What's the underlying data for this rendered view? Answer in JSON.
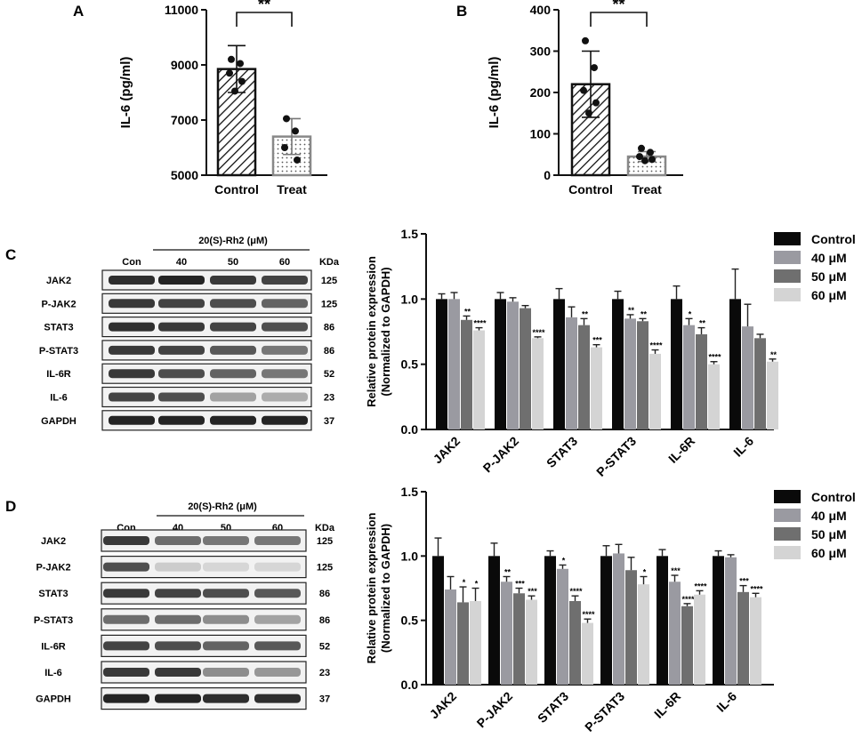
{
  "panels": {
    "A": "A",
    "B": "B",
    "C": "C",
    "D": "D"
  },
  "sig": {
    "double": "**"
  },
  "chart_data": [
    {
      "id": "A",
      "type": "bar",
      "categories": [
        "Control",
        "Treat"
      ],
      "ylabel": "IL-6 (pg/ml)",
      "ylim": [
        5000,
        11000
      ],
      "yticks": [
        5000,
        7000,
        9000,
        11000
      ],
      "values": [
        8850,
        6400
      ],
      "errors": [
        850,
        650
      ],
      "points": [
        [
          9200,
          9050,
          8700,
          8400,
          8050
        ],
        [
          7050,
          6600,
          6000,
          5550
        ]
      ],
      "patterns": [
        "hatch",
        "dots"
      ],
      "significance": "**"
    },
    {
      "id": "B",
      "type": "bar",
      "categories": [
        "Control",
        "Treat"
      ],
      "ylabel": "IL-6 (pg/ml)",
      "ylim": [
        0,
        400
      ],
      "yticks": [
        0,
        100,
        200,
        300,
        400
      ],
      "values": [
        220,
        45
      ],
      "errors": [
        80,
        12
      ],
      "points": [
        [
          325,
          260,
          205,
          175,
          150
        ],
        [
          65,
          55,
          45,
          38,
          35
        ]
      ],
      "patterns": [
        "hatch",
        "dots"
      ],
      "significance": "**"
    },
    {
      "id": "C",
      "type": "bar",
      "categories": [
        "JAK2",
        "P-JAK2",
        "STAT3",
        "P-STAT3",
        "IL-6R",
        "IL-6"
      ],
      "ylabel": "Relative protein expression",
      "ylabel2": "(Normalized to GAPDH)",
      "ylim": [
        0,
        1.5
      ],
      "yticks": [
        "0.0",
        "0.5",
        "1.0",
        "1.5"
      ],
      "colors": [
        "#0a0a0a",
        "#9a9aa1",
        "#6f6f6f",
        "#d4d4d4"
      ],
      "series": [
        {
          "name": "Control",
          "values": [
            1.0,
            1.0,
            1.0,
            1.0,
            1.0,
            1.0
          ],
          "errors": [
            0.04,
            0.05,
            0.08,
            0.06,
            0.1,
            0.23
          ],
          "sig": [
            "",
            "",
            "",
            "",
            "",
            ""
          ]
        },
        {
          "name": "40 μM",
          "values": [
            1.0,
            0.98,
            0.86,
            0.85,
            0.8,
            0.79
          ],
          "errors": [
            0.05,
            0.03,
            0.08,
            0.03,
            0.05,
            0.17
          ],
          "sig": [
            "",
            "",
            "",
            "**",
            "*",
            ""
          ]
        },
        {
          "name": "50 μM",
          "values": [
            0.84,
            0.93,
            0.8,
            0.83,
            0.73,
            0.7
          ],
          "errors": [
            0.03,
            0.02,
            0.05,
            0.02,
            0.05,
            0.03
          ],
          "sig": [
            "**",
            "",
            "**",
            "**",
            "**",
            ""
          ]
        },
        {
          "name": "60 μM",
          "values": [
            0.76,
            0.7,
            0.63,
            0.58,
            0.5,
            0.52
          ],
          "errors": [
            0.02,
            0.01,
            0.02,
            0.03,
            0.02,
            0.02
          ],
          "sig": [
            "****",
            "****",
            "***",
            "****",
            "****",
            "**"
          ]
        }
      ]
    },
    {
      "id": "D",
      "type": "bar",
      "categories": [
        "JAK2",
        "P-JAK2",
        "STAT3",
        "P-STAT3",
        "IL-6R",
        "IL-6"
      ],
      "ylabel": "Relative protein expression",
      "ylabel2": "(Normalized to GAPDH)",
      "ylim": [
        0,
        1.5
      ],
      "yticks": [
        "0.0",
        "0.5",
        "1.0",
        "1.5"
      ],
      "colors": [
        "#0a0a0a",
        "#9a9aa1",
        "#6f6f6f",
        "#d4d4d4"
      ],
      "series": [
        {
          "name": "Control",
          "values": [
            1.0,
            1.0,
            1.0,
            1.0,
            1.0,
            1.0
          ],
          "errors": [
            0.14,
            0.1,
            0.04,
            0.08,
            0.05,
            0.04
          ],
          "sig": [
            "",
            "",
            "",
            "",
            "",
            ""
          ]
        },
        {
          "name": "40 μM",
          "values": [
            0.74,
            0.8,
            0.9,
            1.02,
            0.8,
            0.99
          ],
          "errors": [
            0.1,
            0.04,
            0.03,
            0.07,
            0.05,
            0.02
          ],
          "sig": [
            "",
            "**",
            "*",
            "",
            "***",
            ""
          ]
        },
        {
          "name": "50 μM",
          "values": [
            0.64,
            0.71,
            0.65,
            0.89,
            0.61,
            0.72
          ],
          "errors": [
            0.12,
            0.04,
            0.04,
            0.1,
            0.02,
            0.05
          ],
          "sig": [
            "*",
            "***",
            "****",
            "",
            "****",
            "***"
          ]
        },
        {
          "name": "60 μM",
          "values": [
            0.65,
            0.66,
            0.48,
            0.78,
            0.7,
            0.68
          ],
          "errors": [
            0.1,
            0.03,
            0.03,
            0.06,
            0.03,
            0.03
          ],
          "sig": [
            "*",
            "***",
            "****",
            "*",
            "****",
            "****"
          ]
        }
      ]
    }
  ],
  "blots": {
    "treatment": "20(S)-Rh2 (μM)",
    "lanes": [
      "Con",
      "40",
      "50",
      "60"
    ],
    "kda_header": "KDa",
    "C": {
      "proteins": [
        "JAK2",
        "P-JAK2",
        "STAT3",
        "P-STAT3",
        "IL-6R",
        "IL-6",
        "GAPDH"
      ],
      "kda": [
        "125",
        "125",
        "86",
        "86",
        "52",
        "23",
        "37"
      ],
      "intensity": [
        [
          0.9,
          0.95,
          0.85,
          0.8
        ],
        [
          0.85,
          0.8,
          0.75,
          0.65
        ],
        [
          0.9,
          0.85,
          0.8,
          0.75
        ],
        [
          0.85,
          0.8,
          0.7,
          0.55
        ],
        [
          0.85,
          0.75,
          0.65,
          0.55
        ],
        [
          0.8,
          0.75,
          0.35,
          0.3
        ],
        [
          0.95,
          0.95,
          0.95,
          0.95
        ]
      ]
    },
    "D": {
      "proteins": [
        "JAK2",
        "P-JAK2",
        "STAT3",
        "P-STAT3",
        "IL-6R",
        "IL-6",
        "GAPDH"
      ],
      "kda": [
        "125",
        "125",
        "86",
        "86",
        "52",
        "23",
        "37"
      ],
      "intensity": [
        [
          0.85,
          0.6,
          0.55,
          0.55
        ],
        [
          0.75,
          0.15,
          0.1,
          0.1
        ],
        [
          0.85,
          0.8,
          0.75,
          0.7
        ],
        [
          0.6,
          0.6,
          0.45,
          0.35
        ],
        [
          0.8,
          0.75,
          0.65,
          0.7
        ],
        [
          0.85,
          0.85,
          0.45,
          0.4
        ],
        [
          0.95,
          0.95,
          0.9,
          0.9
        ]
      ]
    }
  }
}
